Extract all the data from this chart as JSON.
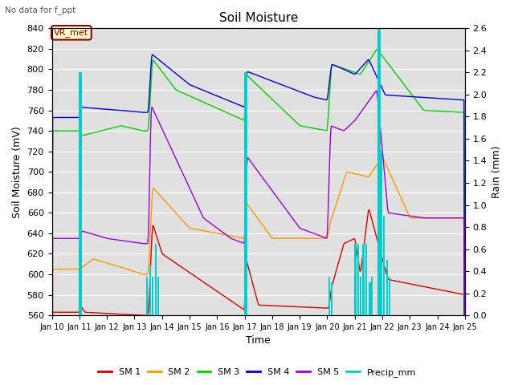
{
  "title": "Soil Moisture",
  "xlabel": "Time",
  "ylabel_left": "Soil Moisture (mV)",
  "ylabel_right": "Rain (mm)",
  "note": "No data for f_ppt",
  "annotation": "VR_met",
  "ylim_left": [
    560,
    840
  ],
  "ylim_right": [
    0.0,
    2.6
  ],
  "xtick_labels": [
    "Jan 10",
    "Jan 11",
    "Jan 12",
    "Jan 13",
    "Jan 14",
    "Jan 15",
    "Jan 16",
    "Jan 17",
    "Jan 18",
    "Jan 19",
    "Jan 20",
    "Jan 21",
    "Jan 22",
    "Jan 23",
    "Jan 24",
    "Jan 25"
  ],
  "colors": {
    "SM1": "#cc0000",
    "SM2": "#ff9900",
    "SM3": "#00cc00",
    "SM4": "#0000cc",
    "SM5": "#9900cc",
    "precip": "#00cccc",
    "bg": "#e0e0e0"
  },
  "legend_labels": [
    "SM 1",
    "SM 2",
    "SM 3",
    "SM 4",
    "SM 5",
    "Precip_mm"
  ],
  "legend_colors": [
    "#cc0000",
    "#ff9900",
    "#00cc00",
    "#0000cc",
    "#9900cc",
    "#00cccc"
  ]
}
